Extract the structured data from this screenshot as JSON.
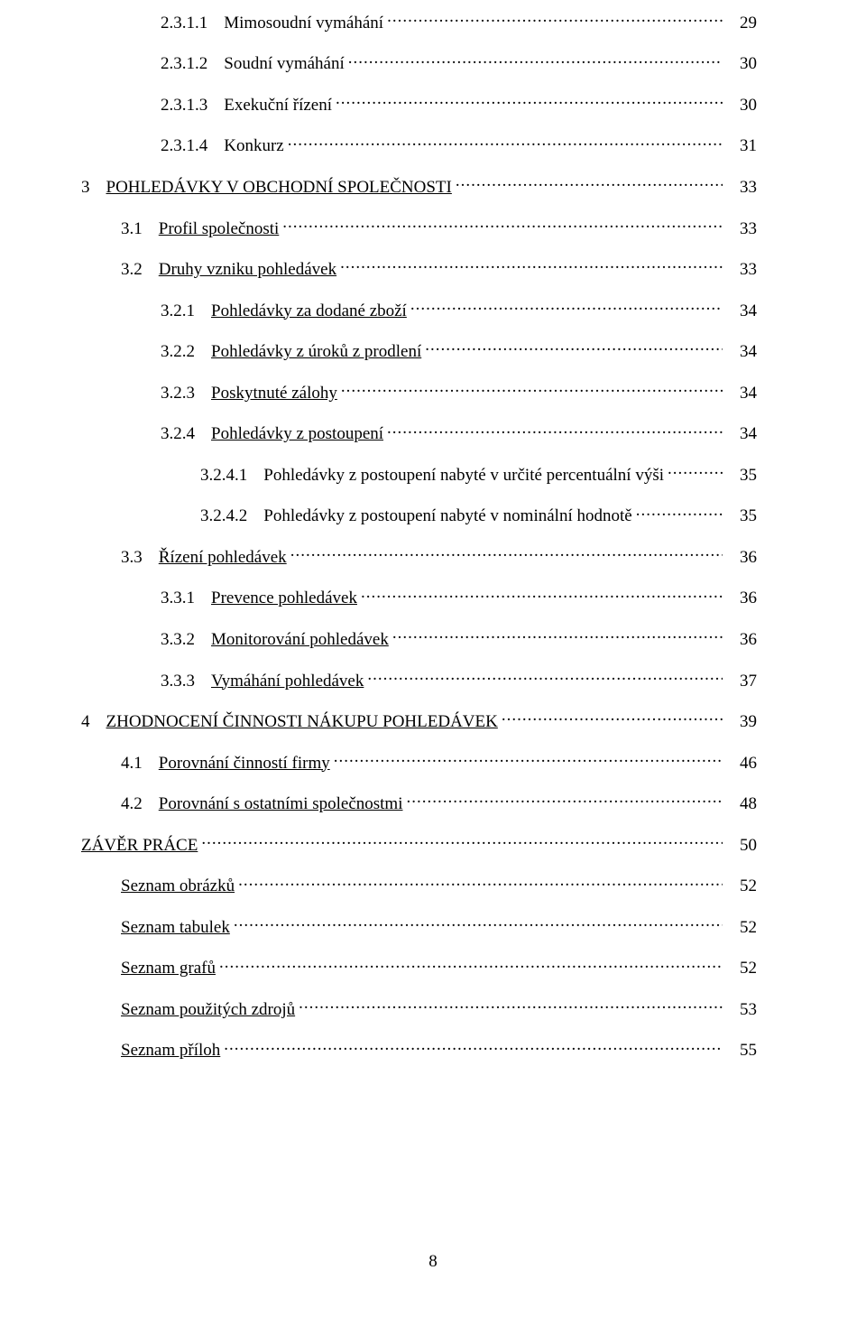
{
  "page_number": "8",
  "toc": [
    {
      "indent": 2,
      "num": "2.3.1.1",
      "title": "Mimosoudní vymáhání",
      "page": "29",
      "underline": false
    },
    {
      "indent": 2,
      "num": "2.3.1.2",
      "title": "Soudní vymáhání",
      "page": "30",
      "underline": false
    },
    {
      "indent": 2,
      "num": "2.3.1.3",
      "title": "Exekuční řízení",
      "page": "30",
      "underline": false
    },
    {
      "indent": 2,
      "num": "2.3.1.4",
      "title": "Konkurz",
      "page": "31",
      "underline": false
    },
    {
      "indent": 0,
      "num": "3",
      "title": "POHLEDÁVKY  V  OBCHODNÍ  SPOLEČNOSTI",
      "page": "33",
      "underline": true
    },
    {
      "indent": 1,
      "num": "3.1",
      "title": "Profil společnosti",
      "page": "33",
      "underline": true
    },
    {
      "indent": 1,
      "num": "3.2",
      "title": "Druhy vzniku pohledávek",
      "page": "33",
      "underline": true
    },
    {
      "indent": 2,
      "num": "3.2.1",
      "title": "Pohledávky za dodané zboží",
      "page": "34",
      "underline": true
    },
    {
      "indent": 2,
      "num": "3.2.2",
      "title": "Pohledávky z úroků z prodlení",
      "page": "34",
      "underline": true
    },
    {
      "indent": 2,
      "num": "3.2.3",
      "title": "Poskytnuté zálohy",
      "page": "34",
      "underline": true
    },
    {
      "indent": 2,
      "num": "3.2.4",
      "title": "Pohledávky z postoupení",
      "page": "34",
      "underline": true
    },
    {
      "indent": 3,
      "num": "3.2.4.1",
      "title": "Pohledávky z postoupení nabyté v určité percentuální výši",
      "page": "35",
      "underline": false
    },
    {
      "indent": 3,
      "num": "3.2.4.2",
      "title": "Pohledávky z postoupení nabyté v nominální hodnotě",
      "page": "35",
      "underline": false
    },
    {
      "indent": 1,
      "num": "3.3",
      "title": "Řízení  pohledávek",
      "page": "36",
      "underline": true
    },
    {
      "indent": 2,
      "num": "3.3.1",
      "title": "Prevence pohledávek",
      "page": "36",
      "underline": true
    },
    {
      "indent": 2,
      "num": "3.3.2",
      "title": "Monitorování  pohledávek",
      "page": "36",
      "underline": true
    },
    {
      "indent": 2,
      "num": "3.3.3",
      "title": "Vymáhání  pohledávek",
      "page": "37",
      "underline": true
    },
    {
      "indent": 0,
      "num": "4",
      "title": "ZHODNOCENÍ  ČINNOSTI  NÁKUPU  POHLEDÁVEK",
      "page": "39",
      "underline": true
    },
    {
      "indent": 1,
      "num": "4.1",
      "title": "Porovnání  činností  firmy",
      "page": "46",
      "underline": true
    },
    {
      "indent": 1,
      "num": "4.2",
      "title": "Porovnání s ostatními společnostmi",
      "page": "48",
      "underline": true
    },
    {
      "indent": 0,
      "num": "",
      "title": "ZÁVĚR  PRÁCE",
      "page": "50",
      "underline": true
    },
    {
      "indent": 1,
      "num": "",
      "title": "Seznam obrázků",
      "page": "52",
      "underline": true
    },
    {
      "indent": 1,
      "num": "",
      "title": "Seznam tabulek",
      "page": "52",
      "underline": true
    },
    {
      "indent": 1,
      "num": "",
      "title": "Seznam grafů",
      "page": "52",
      "underline": true
    },
    {
      "indent": 1,
      "num": "",
      "title": "Seznam použitých zdrojů",
      "page": "53",
      "underline": true
    },
    {
      "indent": 1,
      "num": "",
      "title": "Seznam příloh",
      "page": "55",
      "underline": true
    }
  ]
}
